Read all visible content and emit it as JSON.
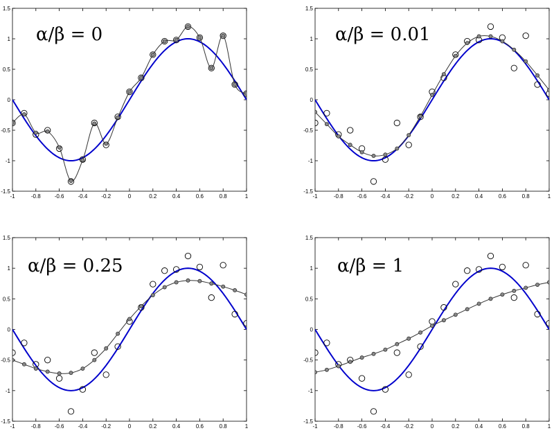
{
  "chart_data": [
    {
      "type": "line",
      "title": "α/β  =  0",
      "xlim": [
        -1,
        1
      ],
      "ylim": [
        -1.5,
        1.5
      ],
      "xticks": [
        -1,
        -0.8,
        -0.6,
        -0.4,
        -0.2,
        0,
        0.2,
        0.4,
        0.6,
        0.8,
        1
      ],
      "yticks": [
        -1.5,
        -1,
        -0.5,
        0,
        0.5,
        1,
        1.5
      ],
      "xtick_labels": [
        "-1",
        "-0.8",
        "-0.6",
        "-0.4",
        "-0.2",
        "0",
        "0.2",
        "0.4",
        "0.6",
        "0.8",
        "1"
      ],
      "ytick_labels": [
        "-1.5",
        "-1",
        "-0.5",
        "0",
        "0.5",
        "1",
        "1.5"
      ],
      "grid": false,
      "series": [
        {
          "kind": "true-function",
          "color": "#0000cc",
          "function": "sin(pi*x)"
        },
        {
          "kind": "observations",
          "marker": "open-circle",
          "x": [
            -1,
            -0.9,
            -0.8,
            -0.7,
            -0.6,
            -0.5,
            -0.4,
            -0.3,
            -0.2,
            -0.1,
            0,
            0.1,
            0.2,
            0.3,
            0.4,
            0.5,
            0.6,
            0.7,
            0.8,
            0.9,
            1
          ],
          "y": [
            -0.38,
            -0.22,
            -0.57,
            -0.5,
            -0.8,
            -1.34,
            -0.98,
            -0.38,
            -0.74,
            -0.28,
            0.13,
            0.36,
            0.74,
            0.96,
            0.98,
            1.2,
            1.02,
            0.52,
            1.05,
            0.25,
            0.1
          ]
        },
        {
          "kind": "fit",
          "color": "#333333",
          "marker": "small-dot",
          "x": [
            -1,
            -0.9,
            -0.8,
            -0.7,
            -0.6,
            -0.5,
            -0.4,
            -0.3,
            -0.2,
            -0.1,
            0,
            0.1,
            0.2,
            0.3,
            0.4,
            0.5,
            0.6,
            0.7,
            0.8,
            0.9,
            1
          ],
          "y": [
            -0.38,
            -0.24,
            -0.54,
            -0.52,
            -0.78,
            -1.33,
            -0.99,
            -0.39,
            -0.72,
            -0.29,
            0.13,
            0.36,
            0.74,
            0.96,
            0.98,
            1.2,
            1.02,
            0.52,
            1.05,
            0.25,
            0.1
          ]
        }
      ]
    },
    {
      "type": "line",
      "title": "α/β  =  0.01",
      "xlim": [
        -1,
        1
      ],
      "ylim": [
        -1.5,
        1.5
      ],
      "xticks": [
        -1,
        -0.8,
        -0.6,
        -0.4,
        -0.2,
        0,
        0.2,
        0.4,
        0.6,
        0.8,
        1
      ],
      "yticks": [
        -1.5,
        -1,
        -0.5,
        0,
        0.5,
        1,
        1.5
      ],
      "xtick_labels": [
        "-1",
        "-0.8",
        "-0.6",
        "-0.4",
        "-0.2",
        "0",
        "0.2",
        "0.4",
        "0.6",
        "0.8",
        "1"
      ],
      "ytick_labels": [
        "-1.5",
        "-1",
        "-0.5",
        "0",
        "0.5",
        "1",
        "1.5"
      ],
      "grid": false,
      "series": [
        {
          "kind": "true-function",
          "color": "#0000cc",
          "function": "sin(pi*x)"
        },
        {
          "kind": "observations",
          "marker": "open-circle",
          "x": [
            -1,
            -0.9,
            -0.8,
            -0.7,
            -0.6,
            -0.5,
            -0.4,
            -0.3,
            -0.2,
            -0.1,
            0,
            0.1,
            0.2,
            0.3,
            0.4,
            0.5,
            0.6,
            0.7,
            0.8,
            0.9,
            1
          ],
          "y": [
            -0.38,
            -0.22,
            -0.57,
            -0.5,
            -0.8,
            -1.34,
            -0.98,
            -0.38,
            -0.74,
            -0.28,
            0.13,
            0.36,
            0.74,
            0.96,
            0.98,
            1.2,
            1.02,
            0.52,
            1.05,
            0.25,
            0.1
          ]
        },
        {
          "kind": "fit",
          "color": "#333333",
          "marker": "small-dot",
          "x": [
            -1,
            -0.9,
            -0.8,
            -0.7,
            -0.6,
            -0.5,
            -0.4,
            -0.3,
            -0.2,
            -0.1,
            0,
            0.1,
            0.2,
            0.3,
            0.4,
            0.5,
            0.6,
            0.7,
            0.8,
            0.9,
            1
          ],
          "y": [
            -0.2,
            -0.4,
            -0.6,
            -0.74,
            -0.86,
            -0.92,
            -0.9,
            -0.8,
            -0.58,
            -0.27,
            0.08,
            0.42,
            0.72,
            0.93,
            1.04,
            1.04,
            0.96,
            0.82,
            0.63,
            0.4,
            0.16
          ]
        }
      ]
    },
    {
      "type": "line",
      "title": "α/β  =  0.25",
      "xlim": [
        -1,
        1
      ],
      "ylim": [
        -1.5,
        1.5
      ],
      "xticks": [
        -1,
        -0.8,
        -0.6,
        -0.4,
        -0.2,
        0,
        0.2,
        0.4,
        0.6,
        0.8,
        1
      ],
      "yticks": [
        -1.5,
        -1,
        -0.5,
        0,
        0.5,
        1,
        1.5
      ],
      "xtick_labels": [
        "-1",
        "-0.8",
        "-0.6",
        "-0.4",
        "-0.2",
        "0",
        "0.2",
        "0.4",
        "0.6",
        "0.8",
        "1"
      ],
      "ytick_labels": [
        "-1.5",
        "-1",
        "-0.5",
        "0",
        "0.5",
        "1",
        "1.5"
      ],
      "grid": false,
      "series": [
        {
          "kind": "true-function",
          "color": "#0000cc",
          "function": "sin(pi*x)"
        },
        {
          "kind": "observations",
          "marker": "open-circle",
          "x": [
            -1,
            -0.9,
            -0.8,
            -0.7,
            -0.6,
            -0.5,
            -0.4,
            -0.3,
            -0.2,
            -0.1,
            0,
            0.1,
            0.2,
            0.3,
            0.4,
            0.5,
            0.6,
            0.7,
            0.8,
            0.9,
            1
          ],
          "y": [
            -0.38,
            -0.22,
            -0.57,
            -0.5,
            -0.8,
            -1.34,
            -0.98,
            -0.38,
            -0.74,
            -0.28,
            0.13,
            0.36,
            0.74,
            0.96,
            0.98,
            1.2,
            1.02,
            0.52,
            1.05,
            0.25,
            0.1
          ]
        },
        {
          "kind": "fit",
          "color": "#333333",
          "marker": "small-dot",
          "x": [
            -1,
            -0.9,
            -0.8,
            -0.7,
            -0.6,
            -0.5,
            -0.4,
            -0.3,
            -0.2,
            -0.1,
            0,
            0.1,
            0.2,
            0.3,
            0.4,
            0.5,
            0.6,
            0.7,
            0.8,
            0.9,
            1
          ],
          "y": [
            -0.5,
            -0.57,
            -0.64,
            -0.69,
            -0.72,
            -0.71,
            -0.64,
            -0.5,
            -0.31,
            -0.07,
            0.17,
            0.38,
            0.56,
            0.69,
            0.77,
            0.8,
            0.79,
            0.75,
            0.7,
            0.64,
            0.57
          ]
        }
      ]
    },
    {
      "type": "line",
      "title": "α/β  =  1",
      "xlim": [
        -1,
        1
      ],
      "ylim": [
        -1.5,
        1.5
      ],
      "xticks": [
        -1,
        -0.8,
        -0.6,
        -0.4,
        -0.2,
        0,
        0.2,
        0.4,
        0.6,
        0.8,
        1
      ],
      "yticks": [
        -1.5,
        -1,
        -0.5,
        0,
        0.5,
        1,
        1.5
      ],
      "xtick_labels": [
        "-1",
        "-0.8",
        "-0.6",
        "-0.4",
        "-0.2",
        "0",
        "0.2",
        "0.4",
        "0.6",
        "0.8",
        "1"
      ],
      "ytick_labels": [
        "-1.5",
        "-1",
        "-0.5",
        "0",
        "0.5",
        "1",
        "1.5"
      ],
      "grid": false,
      "series": [
        {
          "kind": "true-function",
          "color": "#0000cc",
          "function": "sin(pi*x)"
        },
        {
          "kind": "observations",
          "marker": "open-circle",
          "x": [
            -1,
            -0.9,
            -0.8,
            -0.7,
            -0.6,
            -0.5,
            -0.4,
            -0.3,
            -0.2,
            -0.1,
            0,
            0.1,
            0.2,
            0.3,
            0.4,
            0.5,
            0.6,
            0.7,
            0.8,
            0.9,
            1
          ],
          "y": [
            -0.38,
            -0.22,
            -0.57,
            -0.5,
            -0.8,
            -1.34,
            -0.98,
            -0.38,
            -0.74,
            -0.28,
            0.13,
            0.36,
            0.74,
            0.96,
            0.98,
            1.2,
            1.02,
            0.52,
            1.05,
            0.25,
            0.1
          ]
        },
        {
          "kind": "fit",
          "color": "#333333",
          "marker": "small-dot",
          "x": [
            -1,
            -0.9,
            -0.8,
            -0.7,
            -0.6,
            -0.5,
            -0.4,
            -0.3,
            -0.2,
            -0.1,
            0,
            0.1,
            0.2,
            0.3,
            0.4,
            0.5,
            0.6,
            0.7,
            0.8,
            0.9,
            1
          ],
          "y": [
            -0.7,
            -0.66,
            -0.6,
            -0.53,
            -0.46,
            -0.4,
            -0.33,
            -0.24,
            -0.15,
            -0.05,
            0.06,
            0.15,
            0.24,
            0.33,
            0.42,
            0.5,
            0.57,
            0.63,
            0.68,
            0.73,
            0.77
          ]
        }
      ]
    }
  ]
}
